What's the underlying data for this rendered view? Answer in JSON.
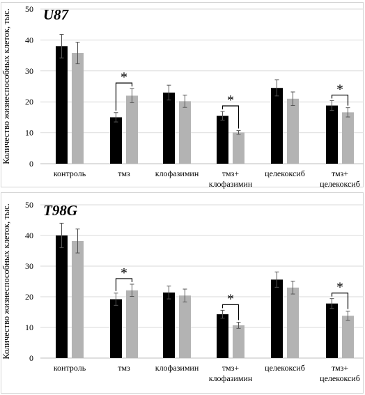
{
  "chart_data": [
    {
      "type": "bar",
      "title": "U87",
      "ylabel": "Количество жизнеспособных клеток, тыс.",
      "ylim": [
        0,
        50
      ],
      "yticks": [
        0,
        10,
        20,
        30,
        40,
        50
      ],
      "categories": [
        "контроль",
        "тмз",
        "клофазимин",
        "тмз+ клофазимин",
        "целекоксиб",
        "тмз+ целекоксиб"
      ],
      "series": [
        {
          "color": "#000000",
          "values": [
            38,
            15,
            23,
            15.5,
            24.5,
            18.8
          ],
          "errors": [
            3.8,
            1.5,
            2.4,
            1.4,
            2.6,
            1.6
          ]
        },
        {
          "color": "#b3b3b3",
          "values": [
            35.8,
            22,
            20.2,
            10.1,
            21,
            16.6
          ],
          "errors": [
            3.5,
            2.3,
            2.0,
            0.6,
            2.2,
            1.5
          ]
        }
      ],
      "significance": [
        {
          "category": "тмз",
          "label": "*"
        },
        {
          "category": "тмз+ клофазимин",
          "label": "*"
        },
        {
          "category": "тмз+ целекоксиб",
          "label": "*"
        }
      ],
      "grid": true
    },
    {
      "type": "bar",
      "title": "T98G",
      "ylabel": "Количество жизнеспособных клеток, тыс.",
      "ylim": [
        0,
        50
      ],
      "yticks": [
        0,
        10,
        20,
        30,
        40,
        50
      ],
      "categories": [
        "контроль",
        "тмз",
        "клофазимин",
        "тмз+ клофазимин",
        "целекоксиб",
        "тмз+ целекоксиб"
      ],
      "series": [
        {
          "color": "#000000",
          "values": [
            40,
            19.2,
            21.4,
            14.3,
            25.6,
            17.8
          ],
          "errors": [
            4.0,
            2.0,
            2.1,
            1.3,
            2.5,
            1.6
          ]
        },
        {
          "color": "#b3b3b3",
          "values": [
            38.2,
            22.1,
            20.4,
            10.7,
            23,
            13.8
          ],
          "errors": [
            3.9,
            2.0,
            2.1,
            1.0,
            2.1,
            1.5
          ]
        }
      ],
      "significance": [
        {
          "category": "тмз",
          "label": "*"
        },
        {
          "category": "тмз+ клофазимин",
          "label": "*"
        },
        {
          "category": "тмз+ целекоксиб",
          "label": "*"
        }
      ],
      "grid": true
    }
  ]
}
